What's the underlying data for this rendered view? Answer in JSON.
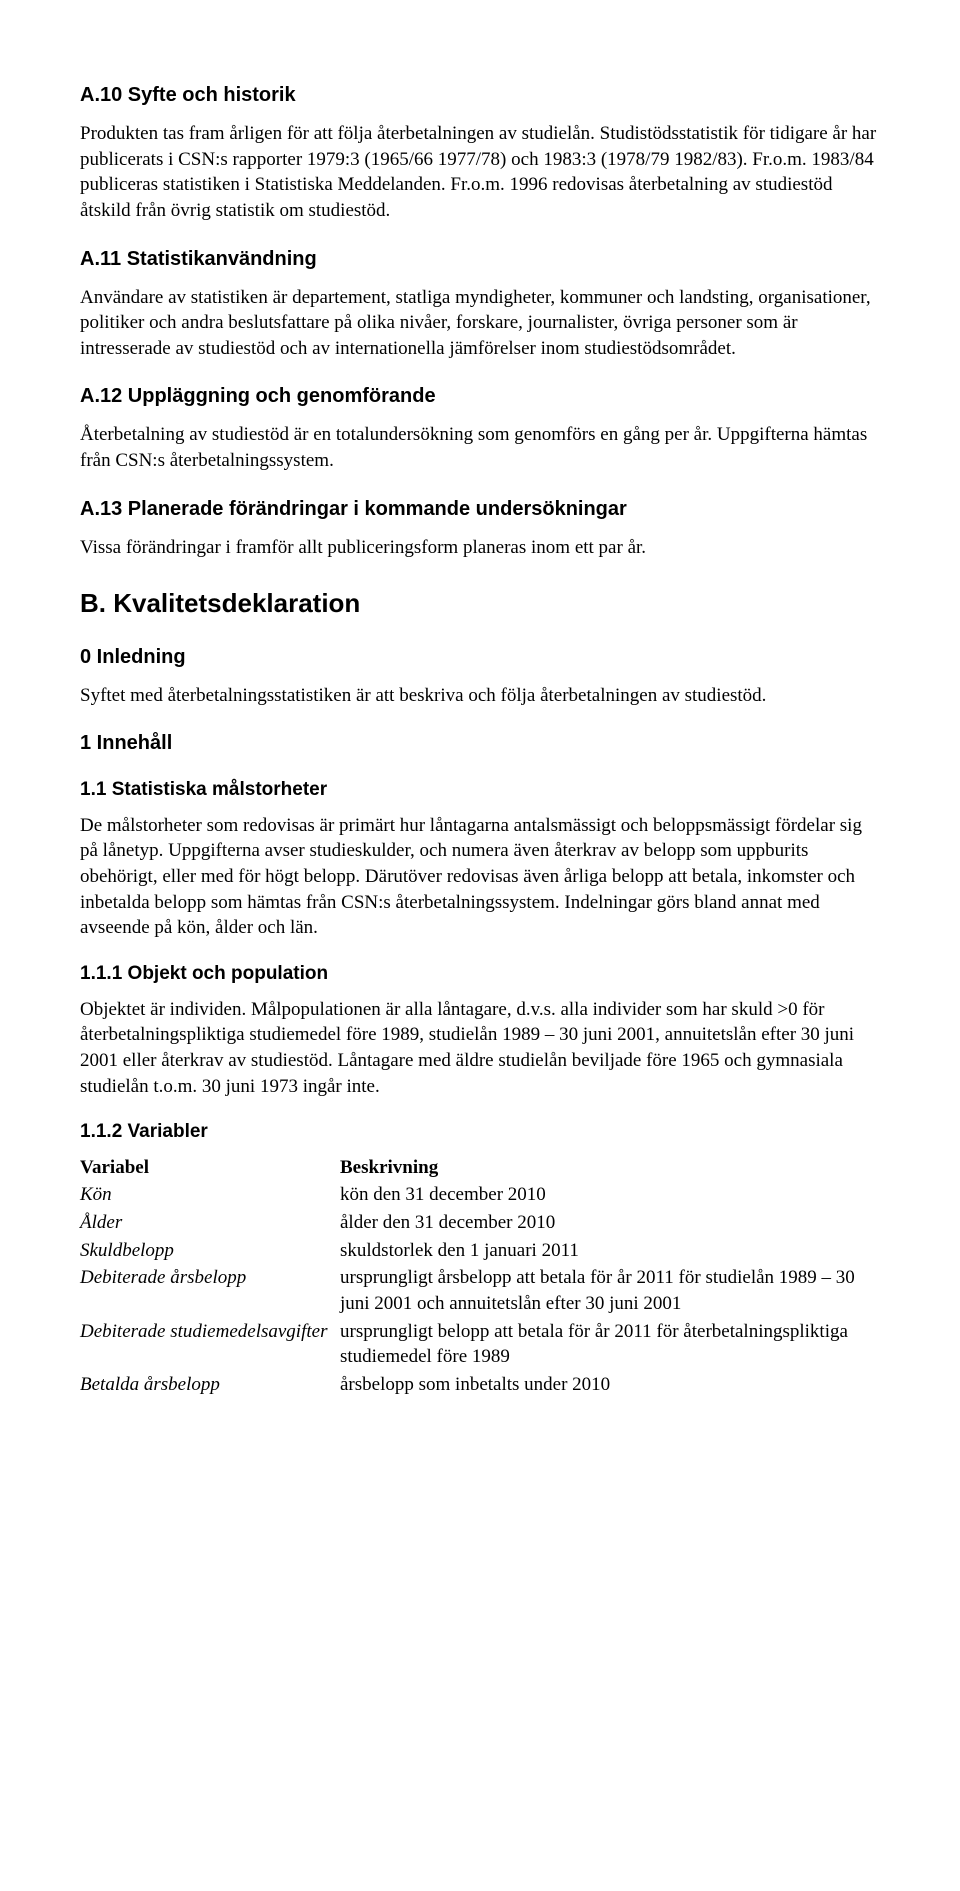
{
  "s10": {
    "heading": "A.10 Syfte och historik",
    "p1": "Produkten tas fram årligen för att följa återbetalningen av studielån. Studistödsstatistik för tidigare år har publicerats i CSN:s rapporter 1979:3 (1965/66 1977/78) och 1983:3 (1978/79 1982/83). Fr.o.m. 1983/84 publiceras statistiken i Statistiska Meddelanden. Fr.o.m. 1996 redovisas återbetalning av studiestöd åtskild från övrig statistik om studiestöd."
  },
  "s11": {
    "heading": "A.11 Statistikanvändning",
    "p1": "Användare av statistiken är departement, statliga myndigheter, kommuner och landsting, organisationer, politiker och andra beslutsfattare på olika nivåer, forskare, journalister, övriga personer som är intresserade av studiestöd och av internationella jämförelser inom studiestödsområdet."
  },
  "s12": {
    "heading": "A.12 Uppläggning och genomförande",
    "p1": "Återbetalning av studiestöd är en totalundersökning som genomförs en gång per år. Uppgifterna hämtas från CSN:s återbetalningssystem."
  },
  "s13": {
    "heading": "A.13 Planerade förändringar i kommande undersökningar",
    "p1": "Vissa förändringar i framför allt publiceringsform planeras inom ett par år."
  },
  "B": {
    "heading": "B. Kvalitetsdeklaration"
  },
  "s0": {
    "heading": "0 Inledning",
    "p1": "Syftet med återbetalningsstatistiken är att beskriva och följa återbetalningen av studiestöd."
  },
  "s1": {
    "heading": "1 Innehåll"
  },
  "s1_1": {
    "heading": "1.1 Statistiska målstorheter",
    "p1": "De målstorheter som redovisas är primärt hur låntagarna antalsmässigt och beloppsmässigt fördelar sig på lånetyp. Uppgifterna avser studieskulder, och numera även återkrav av belopp som uppburits obehörigt, eller med för högt belopp. Därutöver redovisas även årliga belopp att betala, inkomster och inbetalda belopp som hämtas från CSN:s återbetalningssystem. Indelningar görs bland annat med avseende på kön, ålder och län."
  },
  "s1_1_1": {
    "heading": "1.1.1 Objekt och population",
    "p1": "Objektet är individen. Målpopulationen är alla låntagare, d.v.s. alla individer som har skuld >0 för återbetalningspliktiga studiemedel före 1989, studielån 1989 – 30 juni 2001, annuitetslån efter 30 juni 2001 eller återkrav av studiestöd. Låntagare med äldre studielån beviljade före 1965 och gymnasiala studielån t.o.m. 30 juni 1973 ingår inte."
  },
  "s1_1_2": {
    "heading": "1.1.2 Variabler",
    "col1": "Variabel",
    "col2": "Beskrivning",
    "rows": [
      {
        "name": "Kön",
        "desc": "kön den 31 december 2010"
      },
      {
        "name": "Ålder",
        "desc": "ålder den 31 december 2010"
      },
      {
        "name": "Skuldbelopp",
        "desc": "skuldstorlek den 1 januari 2011"
      },
      {
        "name": "Debiterade årsbelopp",
        "desc": "ursprungligt årsbelopp att betala för år 2011 för studielån 1989 – 30 juni 2001 och annuitetslån efter 30 juni 2001"
      },
      {
        "name": "Debiterade studiemedelsavgifter",
        "desc": "ursprungligt belopp att betala för år 2011 för återbetalningspliktiga studiemedel före 1989"
      },
      {
        "name": "Betalda årsbelopp",
        "desc": "årsbelopp som inbetalts under 2010"
      }
    ]
  }
}
